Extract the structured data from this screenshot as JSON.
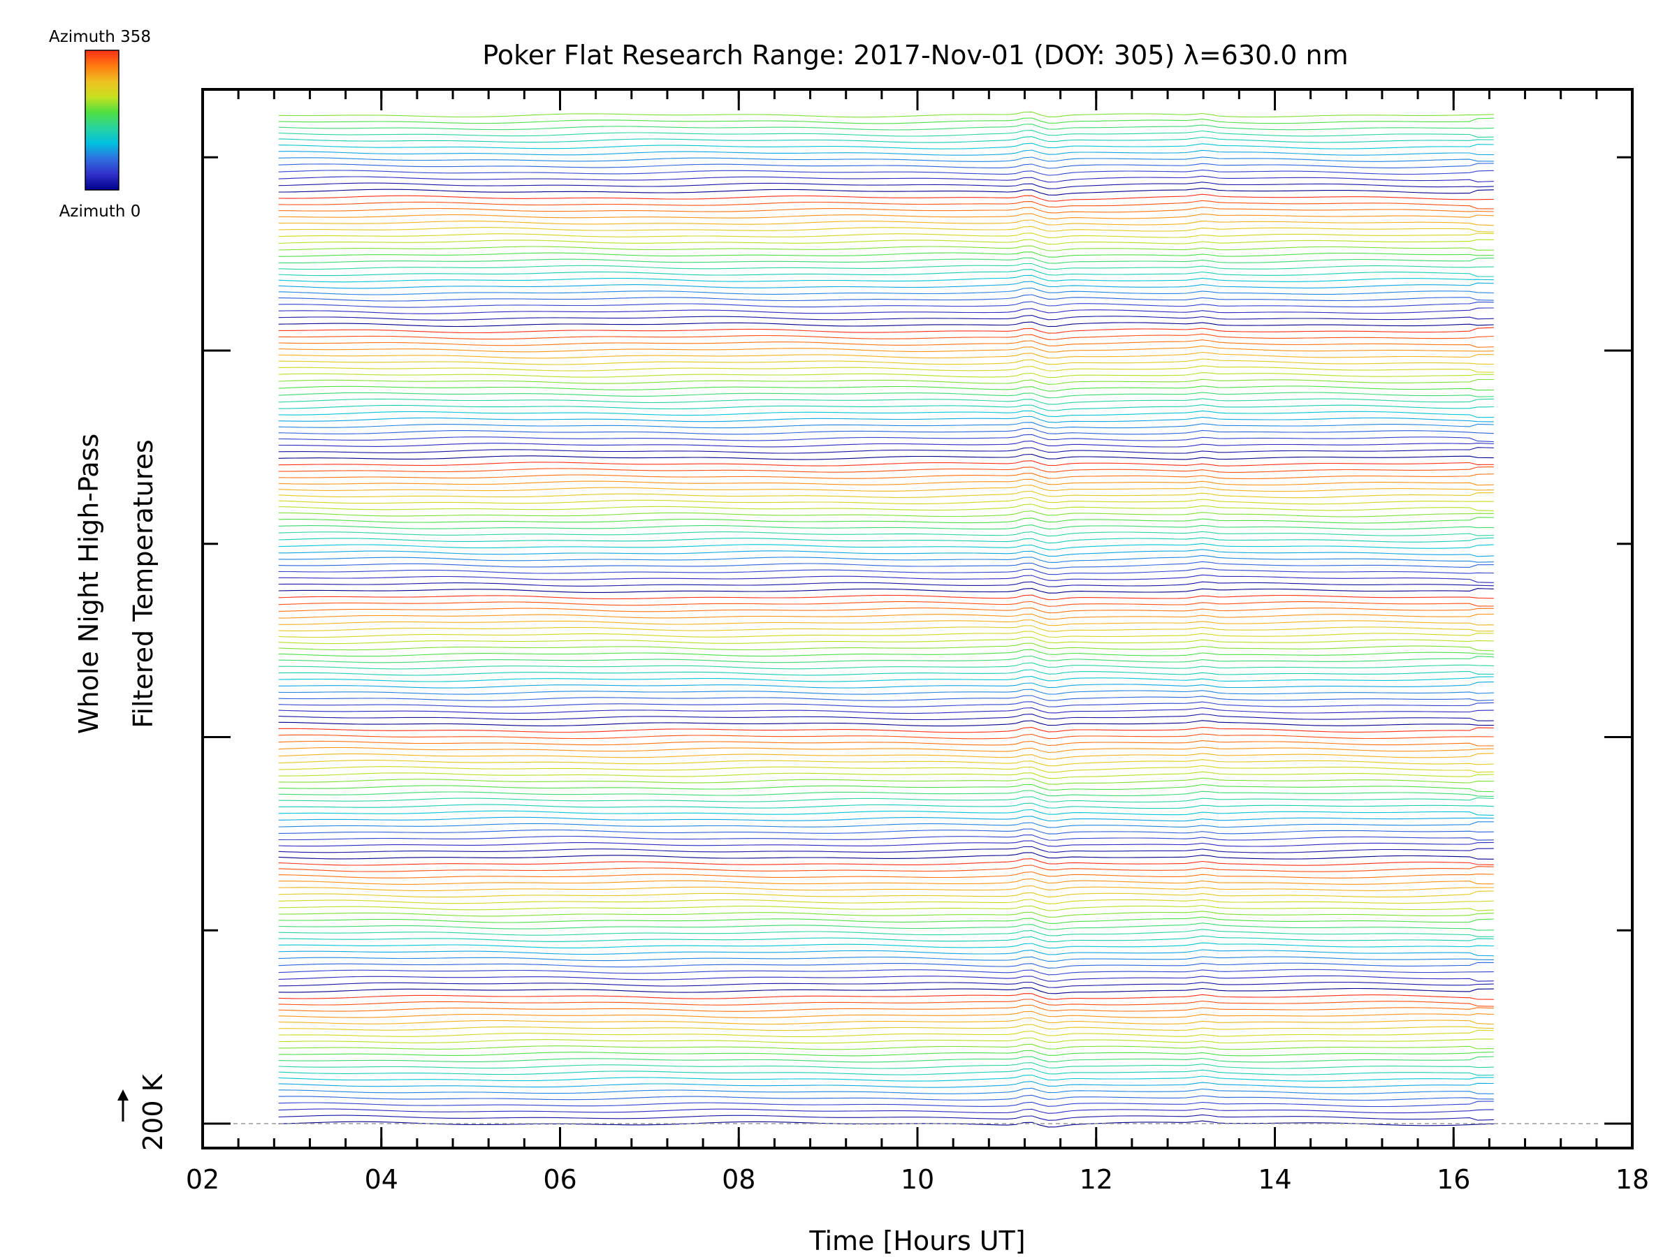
{
  "chart_data": {
    "type": "line",
    "title": "Poker Flat Research Range: 2017-Nov-01 (DOY: 305) λ=630.0 nm",
    "xlabel": "Time [Hours UT]",
    "ylabel_line1": "Whole Night High-Pass",
    "ylabel_line2": "Filtered Temperatures",
    "scale_label": "200 K",
    "xlim": [
      2,
      18
    ],
    "x_ticks": [
      "02",
      "04",
      "06",
      "08",
      "10",
      "12",
      "14",
      "16",
      "18"
    ],
    "x_major_values": [
      2,
      4,
      6,
      8,
      10,
      12,
      14,
      16,
      18
    ],
    "x_minor_step": 0.4,
    "y_major_tick_count": 9,
    "y_minor_per_major": 2,
    "grid": false,
    "time_start": 2.85,
    "time_end": 16.45,
    "series_count": 160,
    "azimuth_cycle_length": 21,
    "colorbar": {
      "label_top": "Azimuth 358",
      "label_bottom": "Azimuth 0",
      "min": 0,
      "max": 358,
      "colormap": "rainbow",
      "colors": [
        "#00008b",
        "#3030c8",
        "#2f6fe0",
        "#00c0e0",
        "#28d4a0",
        "#50e040",
        "#c8e020",
        "#f0c020",
        "#ff7a10",
        "#ff3018"
      ]
    },
    "colors": {
      "axis": "#000000",
      "baseline_dash": "#999999"
    }
  }
}
